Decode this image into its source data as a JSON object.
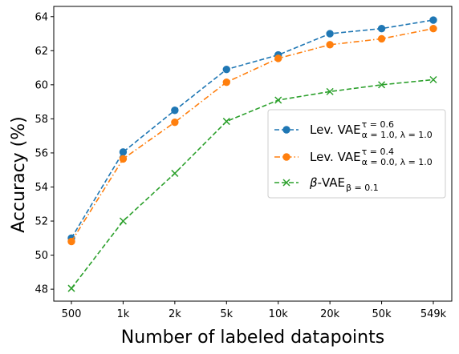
{
  "chart_data": {
    "type": "line",
    "categories": [
      "500",
      "1k",
      "2k",
      "5k",
      "10k",
      "20k",
      "50k",
      "549k"
    ],
    "xlabel": "Number of labeled datapoints",
    "ylabel": "Accuracy (%)",
    "ylim": [
      47.3,
      64.6
    ],
    "yticks": [
      48,
      50,
      52,
      54,
      56,
      58,
      60,
      62,
      64
    ],
    "legend_placement": "center-right",
    "grid": false,
    "series": [
      {
        "name": "Lev. VAE",
        "name_sup": "τ = 0.6",
        "name_sub": "α = 1.0, λ = 1.0",
        "color": "#1f77b4",
        "linestyle": "dashed",
        "marker": "circle",
        "values": [
          51.0,
          56.05,
          58.5,
          60.9,
          61.75,
          63.0,
          63.3,
          63.8
        ]
      },
      {
        "name": "Lev. VAE",
        "name_sup": "τ = 0.4",
        "name_sub": "α = 0.0, λ = 1.0",
        "color": "#ff7f0e",
        "linestyle": "dashdot",
        "marker": "circle",
        "values": [
          50.8,
          55.65,
          57.8,
          60.15,
          61.55,
          62.35,
          62.7,
          63.3
        ]
      },
      {
        "name": "β-VAE",
        "name_sub": "β = 0.1",
        "color": "#2ca02c",
        "linestyle": "dashed",
        "marker": "x",
        "values": [
          48.05,
          52.0,
          54.8,
          57.85,
          59.1,
          59.6,
          60.0,
          60.3
        ]
      }
    ]
  }
}
